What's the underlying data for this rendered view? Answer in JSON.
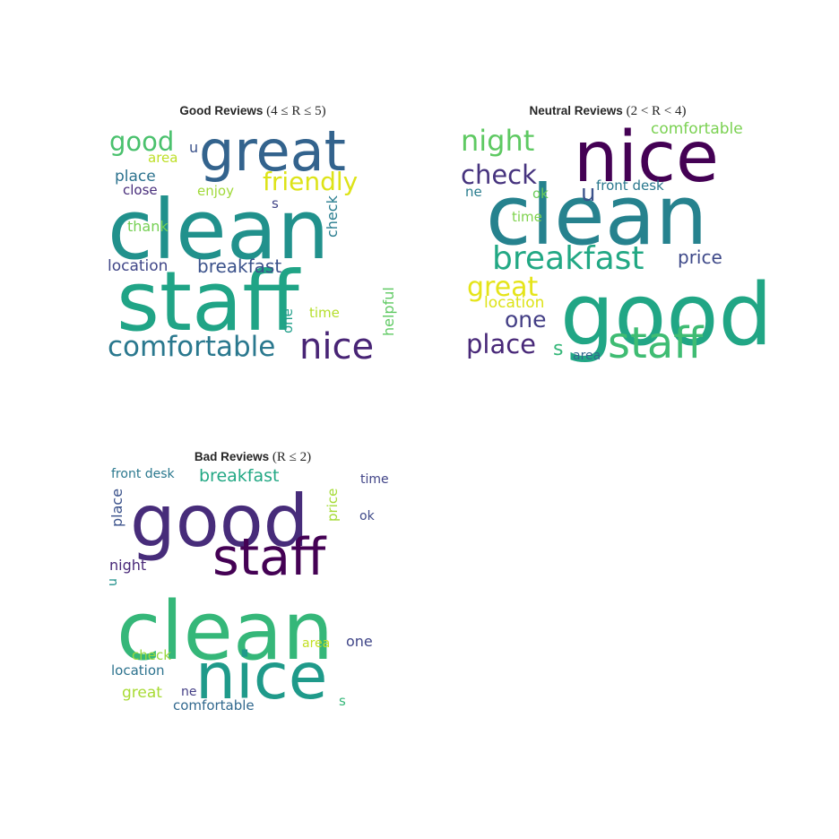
{
  "chart_data": [
    {
      "type": "wordcloud",
      "title_bold": "Good Reviews",
      "title_math": "(4 ≤ R ≤ 5)",
      "words": [
        {
          "text": "great",
          "color": "#33638d"
        },
        {
          "text": "clean",
          "color": "#21918c"
        },
        {
          "text": "staff",
          "color": "#20a486"
        },
        {
          "text": "nice",
          "color": "#482475"
        },
        {
          "text": "comfortable",
          "color": "#2a788e"
        },
        {
          "text": "friendly",
          "color": "#dde318"
        },
        {
          "text": "good",
          "color": "#4ac16d"
        },
        {
          "text": "breakfast",
          "color": "#3b528b"
        },
        {
          "text": "location",
          "color": "#404688"
        },
        {
          "text": "place",
          "color": "#2c728e"
        },
        {
          "text": "area",
          "color": "#bddf26"
        },
        {
          "text": "close",
          "color": "#472c7a"
        },
        {
          "text": "enjoy",
          "color": "#a0da39"
        },
        {
          "text": "thank",
          "color": "#75d054"
        },
        {
          "text": "u",
          "color": "#3b528b"
        },
        {
          "text": "s",
          "color": "#414487"
        },
        {
          "text": "check",
          "color": "#287c8e"
        },
        {
          "text": "helpful",
          "color": "#5ec962"
        },
        {
          "text": "one",
          "color": "#1f9e89"
        },
        {
          "text": "time",
          "color": "#b5de2b"
        }
      ]
    },
    {
      "type": "wordcloud",
      "title_bold": "Neutral Reviews",
      "title_math": "(2 < R < 4)",
      "words": [
        {
          "text": "nice",
          "color": "#440154"
        },
        {
          "text": "clean",
          "color": "#26828e"
        },
        {
          "text": "good",
          "color": "#21a685"
        },
        {
          "text": "staff",
          "color": "#3fbc73"
        },
        {
          "text": "breakfast",
          "color": "#22a884"
        },
        {
          "text": "night",
          "color": "#5ec962"
        },
        {
          "text": "check",
          "color": "#46337e"
        },
        {
          "text": "comfortable",
          "color": "#7ad151"
        },
        {
          "text": "u",
          "color": "#3b528b"
        },
        {
          "text": "front desk",
          "color": "#2a788e"
        },
        {
          "text": "ne",
          "color": "#287c8e"
        },
        {
          "text": "ok",
          "color": "#6ccd5a"
        },
        {
          "text": "time",
          "color": "#7fd34e"
        },
        {
          "text": "price",
          "color": "#3e4989"
        },
        {
          "text": "great",
          "color": "#e5e419"
        },
        {
          "text": "location",
          "color": "#dde318"
        },
        {
          "text": "one",
          "color": "#433e85"
        },
        {
          "text": "place",
          "color": "#482878"
        },
        {
          "text": "s",
          "color": "#35b779"
        },
        {
          "text": "area",
          "color": "#31688e"
        }
      ]
    },
    {
      "type": "wordcloud",
      "title_bold": "Bad Reviews",
      "title_math": "(R ≤ 2)",
      "words": [
        {
          "text": "good",
          "color": "#472c7a"
        },
        {
          "text": "staff",
          "color": "#440154"
        },
        {
          "text": "clean",
          "color": "#35b779"
        },
        {
          "text": "nice",
          "color": "#1f9a8a"
        },
        {
          "text": "front desk",
          "color": "#2a788e"
        },
        {
          "text": "breakfast",
          "color": "#22a884"
        },
        {
          "text": "time",
          "color": "#414487"
        },
        {
          "text": "price",
          "color": "#a5db36"
        },
        {
          "text": "ok",
          "color": "#3e4989"
        },
        {
          "text": "place",
          "color": "#3b528b"
        },
        {
          "text": "night",
          "color": "#482878"
        },
        {
          "text": "u",
          "color": "#21918c"
        },
        {
          "text": "area",
          "color": "#c2df23"
        },
        {
          "text": "one",
          "color": "#404688"
        },
        {
          "text": "check",
          "color": "#98d83e"
        },
        {
          "text": "location",
          "color": "#2c728e"
        },
        {
          "text": "great",
          "color": "#a8db34"
        },
        {
          "text": "ne",
          "color": "#433e85"
        },
        {
          "text": "s",
          "color": "#35b779"
        },
        {
          "text": "comfortable",
          "color": "#31688e"
        }
      ]
    }
  ]
}
